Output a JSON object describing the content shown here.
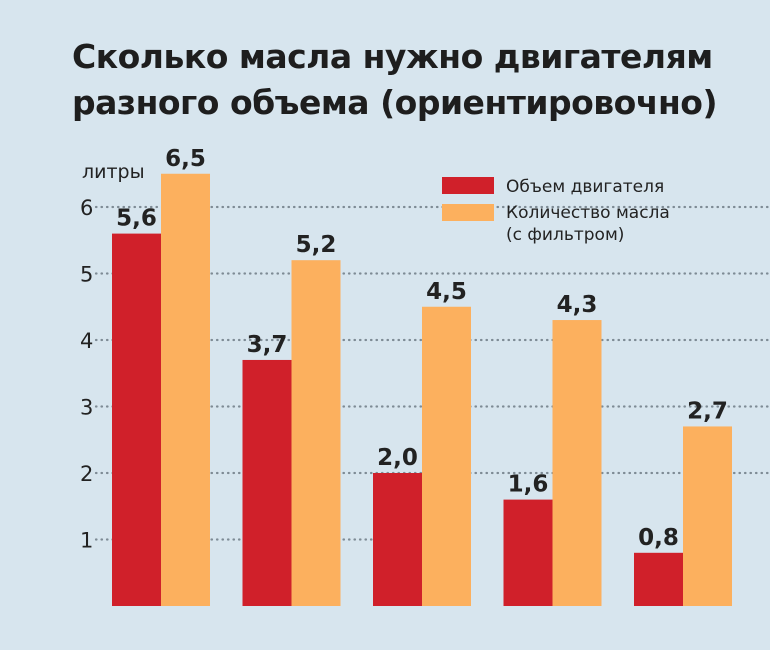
{
  "chart_data": {
    "type": "bar",
    "title_line1": "Сколько масла нужно двигателям",
    "title_line2": "разного объема (ориентировочно)",
    "ylabel": "литры",
    "yticks": [
      "1",
      "2",
      "3",
      "4",
      "5",
      "6"
    ],
    "ylim": [
      0,
      6.5
    ],
    "grid": true,
    "legend_position": "top-right",
    "categories": [
      "",
      "",
      "",
      "",
      ""
    ],
    "series": [
      {
        "name": "Объем двигателя",
        "color": "#d0202a",
        "values": [
          5.6,
          3.7,
          2.0,
          1.6,
          0.8
        ],
        "labels": [
          "5,6",
          "3,7",
          "2,0",
          "1,6",
          "0,8"
        ]
      },
      {
        "name": "Количество масла",
        "name_line2": "(с фильтром)",
        "color": "#fcb05e",
        "values": [
          6.5,
          5.2,
          4.5,
          4.3,
          2.7
        ],
        "labels": [
          "6,5",
          "5,2",
          "4,5",
          "4,3",
          "2,7"
        ]
      }
    ]
  }
}
